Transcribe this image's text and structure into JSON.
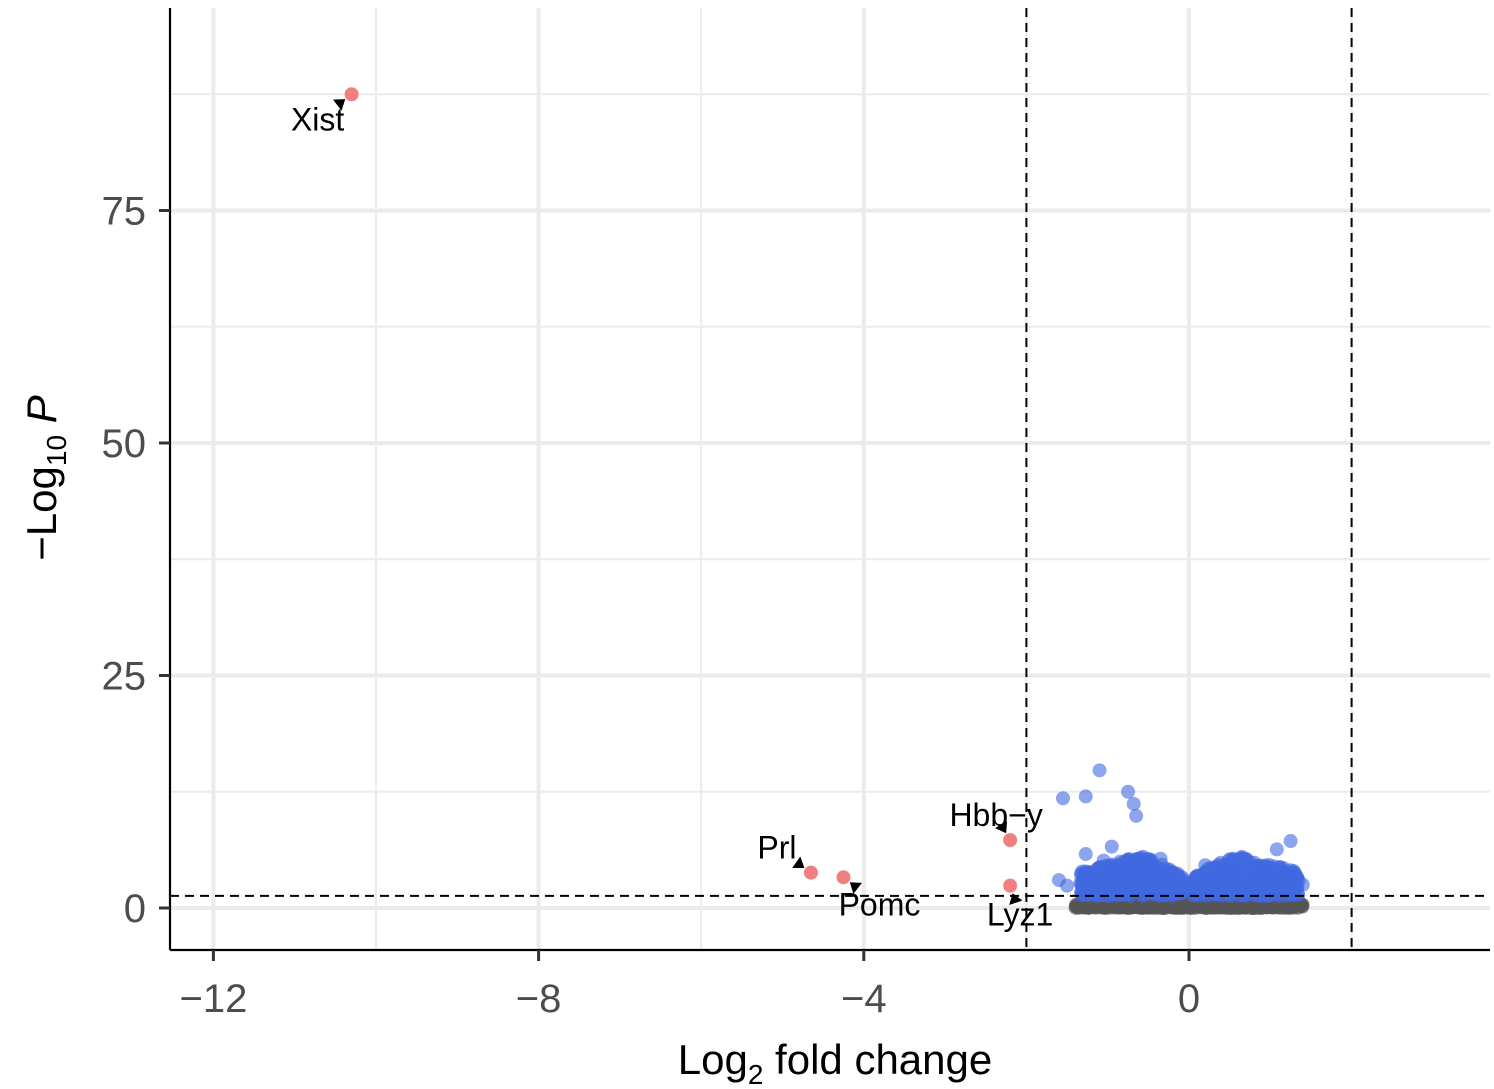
{
  "chart_data": {
    "type": "scatter",
    "title": "",
    "xlabel": {
      "base": "Log",
      "sub": "2",
      "rest": " fold change"
    },
    "ylabel": {
      "minus": "−",
      "base": "Log",
      "sub": "10",
      "italic": " P"
    },
    "xlim": [
      -12.5,
      3.6
    ],
    "ylim": [
      -4,
      97
    ],
    "x_ticks": [
      -12,
      -8,
      -4,
      0
    ],
    "x_tick_labels": [
      "−12",
      "−8",
      "−4",
      "0"
    ],
    "y_ticks": [
      0,
      25,
      50,
      75
    ],
    "y_tick_labels": [
      "0",
      "25",
      "50",
      "75"
    ],
    "grid": true,
    "thresholds": {
      "fold_change": [
        -2,
        2
      ],
      "p_value": 1.3
    },
    "colors": {
      "ns": "#555555",
      "p_only": "#4169E1",
      "p_and_fc": "#F08080",
      "grid": "#ebebeb"
    },
    "series": [
      {
        "group": "p_and_fc",
        "points": [
          {
            "x": -10.3,
            "y": 87.5,
            "label": "Xist"
          },
          {
            "x": -4.65,
            "y": 3.8,
            "label": "Prl"
          },
          {
            "x": -4.25,
            "y": 3.3,
            "label": "Pomc"
          },
          {
            "x": -2.2,
            "y": 7.3,
            "label": "Hbb−y"
          },
          {
            "x": -2.2,
            "y": 2.4,
            "label": "Lyz1"
          }
        ]
      },
      {
        "group": "p_only",
        "points": [
          {
            "x": -1.1,
            "y": 14.8
          },
          {
            "x": -1.55,
            "y": 11.8
          },
          {
            "x": -1.27,
            "y": 12.0
          },
          {
            "x": -0.75,
            "y": 12.5
          },
          {
            "x": -0.68,
            "y": 11.2
          },
          {
            "x": -0.65,
            "y": 9.9
          },
          {
            "x": -0.95,
            "y": 6.6
          },
          {
            "x": -1.27,
            "y": 5.8
          },
          {
            "x": -1.05,
            "y": 5.1
          },
          {
            "x": -0.35,
            "y": 5.3
          },
          {
            "x": 1.25,
            "y": 7.2
          },
          {
            "x": 1.08,
            "y": 6.3
          },
          {
            "x": 0.55,
            "y": 5.3
          },
          {
            "x": 0.65,
            "y": 5.5
          },
          {
            "x": 0.2,
            "y": 4.6
          },
          {
            "x": -0.5,
            "y": 4.6
          },
          {
            "x": 0.95,
            "y": 4.4
          },
          {
            "x": -1.6,
            "y": 3.0
          },
          {
            "x": 1.4,
            "y": 2.5
          },
          {
            "x": -1.5,
            "y": 2.4
          },
          {
            "x": 1.35,
            "y": 2.9
          }
        ]
      }
    ]
  }
}
